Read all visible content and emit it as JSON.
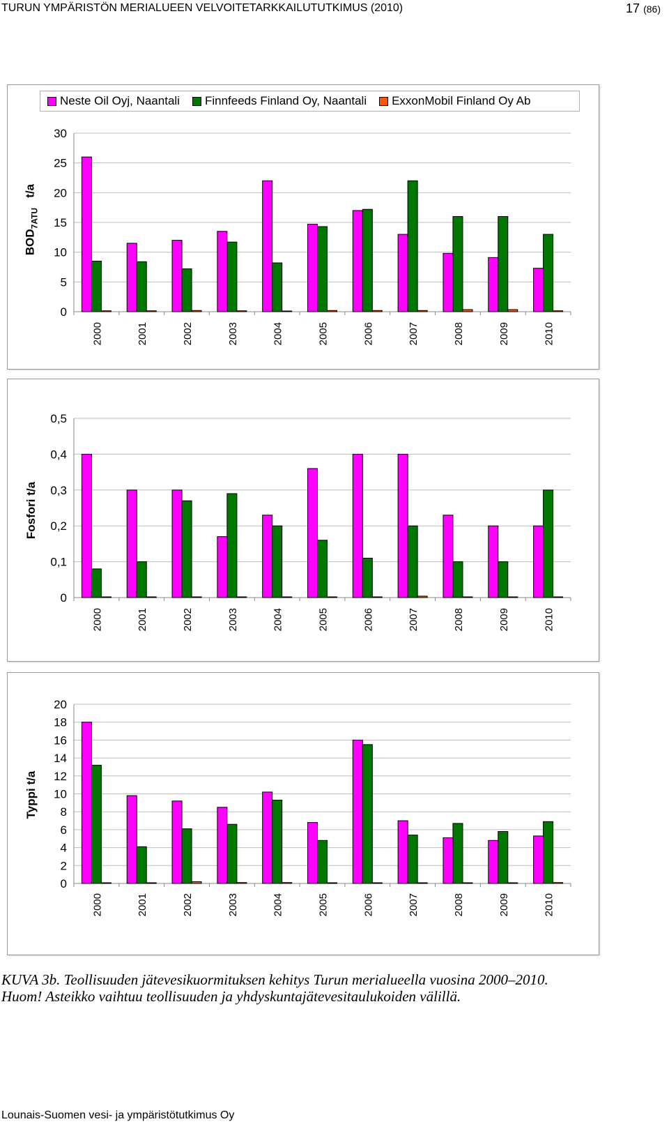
{
  "header": {
    "title": "TURUN YMPÄRISTÖN MERIALUEEN VELVOITETARKKAILUTUTKIMUS (2010)",
    "page": "17",
    "page_total": "(86)"
  },
  "legend": [
    {
      "name": "Neste Oil Oyj, Naantali",
      "color": "#ff00ff"
    },
    {
      "name": "Finnfeeds Finland Oy, Naantali",
      "color": "#007700"
    },
    {
      "name": "ExxonMobil Finland Oy Ab",
      "color": "#ff5500"
    }
  ],
  "ylabels": {
    "bod_main": "BOD",
    "bod_sub": "7ATU",
    "bod_unit": "t/a",
    "fosfori": "Fosfori   t/a",
    "typpi": "Typpi   t/a"
  },
  "chart_data": [
    {
      "type": "bar",
      "title": "BOD7ATU",
      "ylabel": "BOD7ATU t/a",
      "categories": [
        "2000",
        "2001",
        "2002",
        "2003",
        "2004",
        "2005",
        "2006",
        "2007",
        "2008",
        "2009",
        "2010"
      ],
      "ylim": [
        0,
        30
      ],
      "yticks": [
        0,
        5,
        10,
        15,
        20,
        25,
        30
      ],
      "ytick_labels": [
        "0",
        "5",
        "10",
        "15",
        "20",
        "25",
        "30"
      ],
      "series": [
        {
          "name": "Neste Oil Oyj, Naantali",
          "values": [
            26,
            11.5,
            12,
            13.5,
            22,
            14.7,
            17,
            13,
            9.8,
            9.1,
            7.3
          ]
        },
        {
          "name": "Finnfeeds Finland Oy, Naantali",
          "values": [
            8.5,
            8.4,
            7.2,
            11.7,
            8.2,
            14.3,
            17.2,
            22,
            16,
            16,
            13
          ]
        },
        {
          "name": "ExxonMobil Finland Oy Ab",
          "values": [
            0.15,
            0.15,
            0.2,
            0.15,
            0.1,
            0.2,
            0.2,
            0.2,
            0.35,
            0.35,
            0.15
          ]
        }
      ]
    },
    {
      "type": "bar",
      "title": "Fosfori",
      "ylabel": "Fosfori t/a",
      "categories": [
        "2000",
        "2001",
        "2002",
        "2003",
        "2004",
        "2005",
        "2006",
        "2007",
        "2008",
        "2009",
        "2010"
      ],
      "ylim": [
        0,
        0.5
      ],
      "yticks": [
        0,
        0.1,
        0.2,
        0.3,
        0.4,
        0.5
      ],
      "ytick_labels": [
        "0",
        "0,1",
        "0,2",
        "0,3",
        "0,4",
        "0,5"
      ],
      "series": [
        {
          "name": "Neste Oil Oyj, Naantali",
          "values": [
            0.4,
            0.3,
            0.3,
            0.17,
            0.23,
            0.36,
            0.4,
            0.4,
            0.23,
            0.2,
            0.2
          ]
        },
        {
          "name": "Finnfeeds Finland Oy, Naantali",
          "values": [
            0.08,
            0.1,
            0.27,
            0.29,
            0.2,
            0.16,
            0.11,
            0.2,
            0.1,
            0.1,
            0.3
          ]
        },
        {
          "name": "ExxonMobil Finland Oy Ab",
          "values": [
            0.002,
            0.002,
            0.002,
            0.002,
            0.002,
            0.002,
            0.002,
            0.004,
            0.002,
            0.002,
            0.002
          ]
        }
      ]
    },
    {
      "type": "bar",
      "title": "Typpi",
      "ylabel": "Typpi t/a",
      "categories": [
        "2000",
        "2001",
        "2002",
        "2003",
        "2004",
        "2005",
        "2006",
        "2007",
        "2008",
        "2009",
        "2010"
      ],
      "ylim": [
        0,
        20
      ],
      "yticks": [
        0,
        2,
        4,
        6,
        8,
        10,
        12,
        14,
        16,
        18,
        20
      ],
      "ytick_labels": [
        "0",
        "2",
        "4",
        "6",
        "8",
        "10",
        "12",
        "14",
        "16",
        "18",
        "20"
      ],
      "series": [
        {
          "name": "Neste Oil Oyj, Naantali",
          "values": [
            18,
            9.8,
            9.2,
            8.5,
            10.2,
            6.8,
            16,
            7,
            5.1,
            4.8,
            5.3
          ]
        },
        {
          "name": "Finnfeeds Finland Oy, Naantali",
          "values": [
            13.2,
            4.1,
            6.1,
            6.6,
            9.3,
            4.8,
            15.5,
            5.4,
            6.7,
            5.8,
            6.9
          ]
        },
        {
          "name": "ExxonMobil Finland Oy Ab",
          "values": [
            0.05,
            0.05,
            0.2,
            0.1,
            0.1,
            0.05,
            0.05,
            0.05,
            0.05,
            0.05,
            0.1
          ]
        }
      ]
    }
  ],
  "caption": {
    "line1": "KUVA 3b. Teollisuuden jätevesikuormituksen kehitys Turun merialueella vuosina 2000–2010.",
    "line2": "Huom! Asteikko vaihtuu teollisuuden ja yhdyskuntajätevesitaulukoiden välillä."
  },
  "footer": "Lounais-Suomen vesi- ja ympäristötutkimus Oy"
}
